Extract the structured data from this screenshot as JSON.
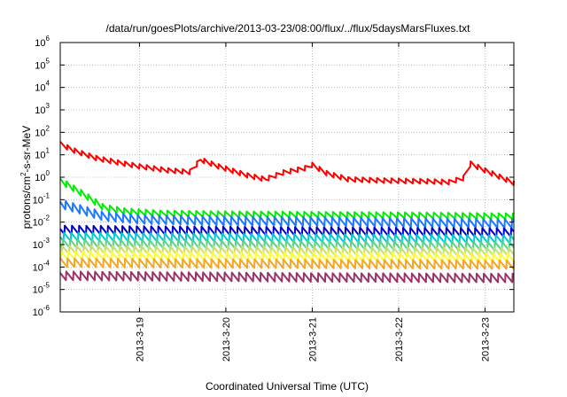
{
  "chart_data": {
    "type": "line",
    "title": "/data/run/goesPlots/archive/2013-03-23/08:00/flux/../flux/5daysMarsFluxes.txt",
    "xlabel": "Coordinated Universal Time (UTC)",
    "ylabel": {
      "prefix": "protons/cm",
      "superscript": "2",
      "suffix": "-s-sr-MeV"
    },
    "y_scale": "log",
    "ylim": [
      1e-06,
      1000000.0
    ],
    "y_ticks": [
      {
        "base": "10",
        "exp": "-6"
      },
      {
        "base": "10",
        "exp": "-5"
      },
      {
        "base": "10",
        "exp": "-4"
      },
      {
        "base": "10",
        "exp": "-3"
      },
      {
        "base": "10",
        "exp": "-2"
      },
      {
        "base": "10",
        "exp": "-1"
      },
      {
        "base": "10",
        "exp": "0"
      },
      {
        "base": "10",
        "exp": "1"
      },
      {
        "base": "10",
        "exp": "2"
      },
      {
        "base": "10",
        "exp": "3"
      },
      {
        "base": "10",
        "exp": "4"
      },
      {
        "base": "10",
        "exp": "5"
      },
      {
        "base": "10",
        "exp": "6"
      }
    ],
    "xlim": [
      "2013-03-18 02:00",
      "2013-03-23 08:00"
    ],
    "x_ticks": [
      {
        "label": "2013-3-19",
        "value": "2013-03-19"
      },
      {
        "label": "2013-3-20",
        "value": "2013-03-20"
      },
      {
        "label": "2013-3-21",
        "value": "2013-03-21"
      },
      {
        "label": "2013-3-22",
        "value": "2013-03-22"
      },
      {
        "label": "2013-3-23",
        "value": "2013-03-23"
      }
    ],
    "grid": true,
    "sawtooth_period_hours": 2,
    "series": [
      {
        "color": "#ff0000",
        "values": [
          [
            "2013-03-18 02:00",
            30
          ],
          [
            "2013-03-18 06:00",
            15
          ],
          [
            "2013-03-18 12:00",
            7
          ],
          [
            "2013-03-18 18:00",
            4.5
          ],
          [
            "2013-03-19 00:00",
            3
          ],
          [
            "2013-03-19 08:00",
            2
          ],
          [
            "2013-03-19 14:00",
            1.7
          ],
          [
            "2013-03-19 17:00",
            6
          ],
          [
            "2013-03-19 22:00",
            3
          ],
          [
            "2013-03-20 06:00",
            1.2
          ],
          [
            "2013-03-20 11:00",
            0.8
          ],
          [
            "2013-03-20 16:00",
            1.6
          ],
          [
            "2013-03-20 22:00",
            2.5
          ],
          [
            "2013-03-21 00:00",
            3.5
          ],
          [
            "2013-03-21 04:00",
            1.5
          ],
          [
            "2013-03-21 10:00",
            0.8
          ],
          [
            "2013-03-21 20:00",
            0.7
          ],
          [
            "2013-03-22 08:00",
            0.65
          ],
          [
            "2013-03-22 14:00",
            0.6
          ],
          [
            "2013-03-22 18:00",
            0.9
          ],
          [
            "2013-03-22 20:00",
            4
          ],
          [
            "2013-03-23 00:00",
            2
          ],
          [
            "2013-03-23 08:00",
            0.55
          ]
        ]
      },
      {
        "color": "#00ee00",
        "values": [
          [
            "2013-03-18 02:00",
            0.7
          ],
          [
            "2013-03-18 06:00",
            0.3
          ],
          [
            "2013-03-18 10:00",
            0.12
          ],
          [
            "2013-03-18 14:00",
            0.045
          ],
          [
            "2013-03-18 20:00",
            0.03
          ],
          [
            "2013-03-19 06:00",
            0.024
          ],
          [
            "2013-03-20 00:00",
            0.022
          ],
          [
            "2013-03-21 00:00",
            0.021
          ],
          [
            "2013-03-22 00:00",
            0.02
          ],
          [
            "2013-03-23 08:00",
            0.018
          ]
        ]
      },
      {
        "color": "#1e78ff",
        "values": [
          [
            "2013-03-18 02:00",
            0.065
          ],
          [
            "2013-03-18 08:00",
            0.035
          ],
          [
            "2013-03-18 14:00",
            0.018
          ],
          [
            "2013-03-19 00:00",
            0.013
          ],
          [
            "2013-03-20 00:00",
            0.011
          ],
          [
            "2013-03-21 00:00",
            0.0105
          ],
          [
            "2013-03-22 00:00",
            0.0095
          ],
          [
            "2013-03-23 08:00",
            0.0085
          ]
        ]
      },
      {
        "color": "#0000cc",
        "values": [
          [
            "2013-03-18 02:00",
            0.0045
          ],
          [
            "2013-03-19 00:00",
            0.0042
          ],
          [
            "2013-03-20 00:00",
            0.004
          ],
          [
            "2013-03-21 00:00",
            0.0038
          ],
          [
            "2013-03-22 00:00",
            0.0036
          ],
          [
            "2013-03-23 08:00",
            0.0034
          ]
        ]
      },
      {
        "color": "#00cccc",
        "values": [
          [
            "2013-03-18 02:00",
            0.0022
          ],
          [
            "2013-03-19 00:00",
            0.0021
          ],
          [
            "2013-03-20 00:00",
            0.002
          ],
          [
            "2013-03-21 00:00",
            0.0019
          ],
          [
            "2013-03-22 00:00",
            0.0018
          ],
          [
            "2013-03-23 08:00",
            0.0017
          ]
        ]
      },
      {
        "color": "#55d48a",
        "values": [
          [
            "2013-03-18 02:00",
            0.0011
          ],
          [
            "2013-03-19 00:00",
            0.00105
          ],
          [
            "2013-03-20 00:00",
            0.001
          ],
          [
            "2013-03-21 00:00",
            0.00095
          ],
          [
            "2013-03-22 00:00",
            0.0009
          ],
          [
            "2013-03-23 08:00",
            0.00085
          ]
        ]
      },
      {
        "color": "#c8e06a",
        "values": [
          [
            "2013-03-18 02:00",
            0.0006
          ],
          [
            "2013-03-19 00:00",
            0.00057
          ],
          [
            "2013-03-20 00:00",
            0.00054
          ],
          [
            "2013-03-21 00:00",
            0.00051
          ],
          [
            "2013-03-22 00:00",
            0.00049
          ],
          [
            "2013-03-23 08:00",
            0.00047
          ]
        ]
      },
      {
        "color": "#ffff33",
        "values": [
          [
            "2013-03-18 02:00",
            0.00032
          ],
          [
            "2013-03-19 00:00",
            0.0003
          ],
          [
            "2013-03-20 00:00",
            0.00029
          ],
          [
            "2013-03-21 00:00",
            0.00028
          ],
          [
            "2013-03-22 00:00",
            0.00027
          ],
          [
            "2013-03-23 08:00",
            0.00026
          ]
        ]
      },
      {
        "color": "#f5a623",
        "values": [
          [
            "2013-03-18 02:00",
            0.00016
          ],
          [
            "2013-03-19 00:00",
            0.00015
          ],
          [
            "2013-03-20 00:00",
            0.000145
          ],
          [
            "2013-03-21 00:00",
            0.00014
          ],
          [
            "2013-03-22 00:00",
            0.000135
          ],
          [
            "2013-03-23 08:00",
            0.00013
          ]
        ]
      },
      {
        "color": "#993366",
        "values": [
          [
            "2013-03-18 02:00",
            4e-05
          ],
          [
            "2013-03-19 00:00",
            3.8e-05
          ],
          [
            "2013-03-20 00:00",
            3.6e-05
          ],
          [
            "2013-03-21 00:00",
            3.4e-05
          ],
          [
            "2013-03-22 00:00",
            3.3e-05
          ],
          [
            "2013-03-23 08:00",
            3.2e-05
          ]
        ]
      }
    ]
  }
}
